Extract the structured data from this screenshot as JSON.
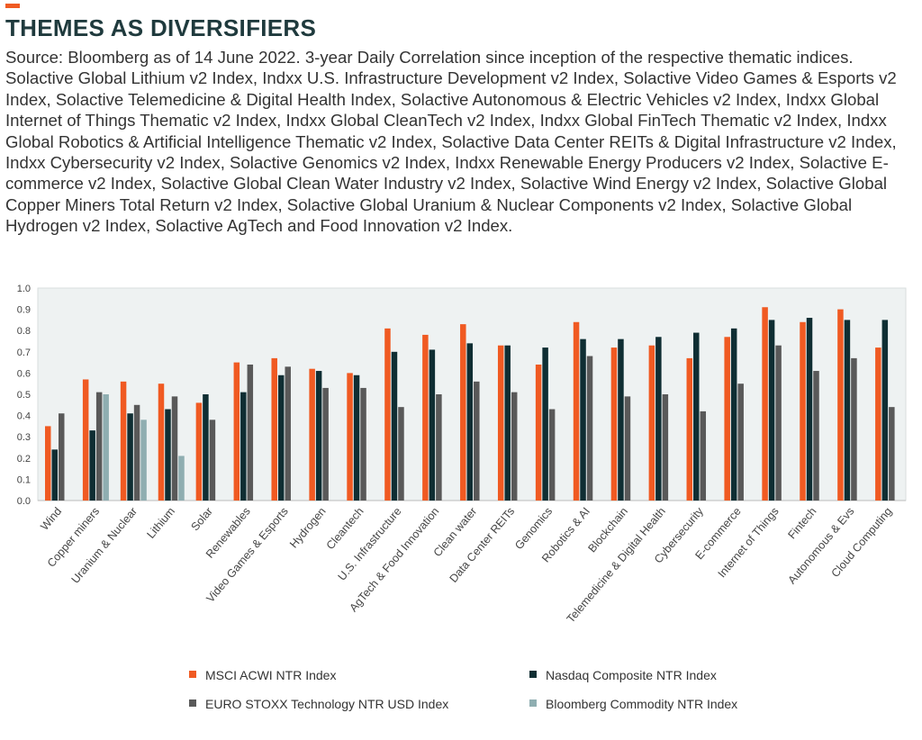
{
  "header": {
    "title": "THEMES AS DIVERSIFIERS",
    "source": "Source: Bloomberg as of 14 June 2022. 3-year Daily Correlation since inception of the respective thematic indices. Solactive Global Lithium v2 Index, Indxx U.S. Infrastructure Development v2 Index, Solactive Video Games & Esports v2 Index, Solactive Telemedicine & Digital Health Index, Solactive Autonomous & Electric Vehicles v2 Index, Indxx Global Internet of Things Thematic v2 Index, Indxx Global CleanTech v2 Index, Indxx Global FinTech Thematic v2 Index, Indxx Global Robotics & Artificial Intelligence Thematic v2 Index, Solactive Data Center REITs & Digital Infrastructure v2 Index, Indxx Cybersecurity v2 Index, Solactive Genomics v2 Index, Indxx Renewable Energy Producers v2 Index, Solactive E-commerce v2 Index, Solactive Global Clean Water Industry v2 Index, Solactive Wind Energy v2 Index, Solactive Global Copper Miners Total Return v2 Index, Solactive Global Uranium & Nuclear Components v2 Index, Solactive Global Hydrogen v2 Index, Solactive AgTech and Food Innovation v2 Index.",
    "accent_color": "#f05a22"
  },
  "chart_data": {
    "type": "bar",
    "ylim": [
      0,
      1.0
    ],
    "yticks": [
      "0.0",
      "0.1",
      "0.2",
      "0.3",
      "0.4",
      "0.5",
      "0.6",
      "0.7",
      "0.8",
      "0.9",
      "1.0"
    ],
    "grid": false,
    "legend_position": "bottom",
    "plot_background": "#eef2f2",
    "categories": [
      "Wind",
      "Copper miners",
      "Uranium & Nuclear",
      "Lithium",
      "Solar",
      "Renewables",
      "Video Games & Esports",
      "Hydrogen",
      "Cleantech",
      "U.S. Infrastructure",
      "AgTech & Food Innovation",
      "Clean water",
      "Data Center REITs",
      "Genomics",
      "Robotics & AI",
      "Blockchain",
      "Telemedicine & Digital Health",
      "Cybersecurity",
      "E-commerce",
      "Internet of Things",
      "Fintech",
      "Autonomous & Evs",
      "Cloud Computing"
    ],
    "series": [
      {
        "name": "MSCI ACWI NTR Index",
        "color": "#f05a22",
        "values": [
          0.35,
          0.57,
          0.56,
          0.55,
          0.46,
          0.65,
          0.67,
          0.62,
          0.6,
          0.81,
          0.78,
          0.83,
          0.73,
          0.64,
          0.84,
          0.72,
          0.73,
          0.67,
          0.77,
          0.91,
          0.84,
          0.9,
          0.72
        ]
      },
      {
        "name": "Nasdaq Composite NTR Index",
        "color": "#0f2e33",
        "values": [
          0.24,
          0.33,
          0.41,
          0.43,
          0.5,
          0.51,
          0.59,
          0.61,
          0.59,
          0.7,
          0.71,
          0.74,
          0.73,
          0.72,
          0.76,
          0.76,
          0.77,
          0.79,
          0.81,
          0.85,
          0.86,
          0.85,
          0.85
        ]
      },
      {
        "name": "EURO STOXX Technology NTR USD Index",
        "color": "#595959",
        "values": [
          0.41,
          0.51,
          0.45,
          0.49,
          0.38,
          0.64,
          0.63,
          0.53,
          0.53,
          0.44,
          0.5,
          0.56,
          0.51,
          0.43,
          0.68,
          0.49,
          0.5,
          0.42,
          0.55,
          0.73,
          0.61,
          0.67,
          0.44
        ]
      },
      {
        "name": "Bloomberg Commodity NTR Index",
        "color": "#8faeb1",
        "values": [
          null,
          0.5,
          0.38,
          0.21,
          null,
          null,
          null,
          null,
          null,
          null,
          null,
          null,
          null,
          null,
          null,
          null,
          null,
          null,
          null,
          null,
          null,
          null,
          null
        ]
      }
    ]
  }
}
